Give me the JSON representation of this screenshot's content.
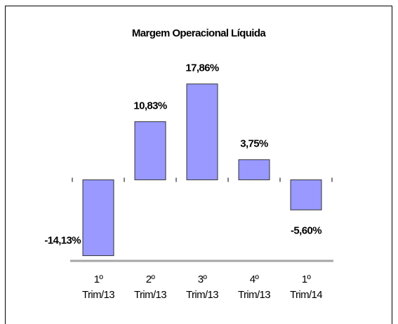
{
  "chart_data": {
    "type": "bar",
    "title": "Margem Operacional Líquida",
    "categories": [
      [
        "1º",
        "Trim/13"
      ],
      [
        "2º",
        "Trim/13"
      ],
      [
        "3º",
        "Trim/13"
      ],
      [
        "4º",
        "Trim/13"
      ],
      [
        "1º",
        "Trim/14"
      ]
    ],
    "values": [
      -14.13,
      10.83,
      17.86,
      3.75,
      -5.6
    ],
    "value_labels": [
      "-14,13%",
      "10,83%",
      "17,86%",
      "3,75%",
      "-5,60%"
    ],
    "color": "#9999ff",
    "ylim": [
      -15.1,
      19
    ]
  }
}
